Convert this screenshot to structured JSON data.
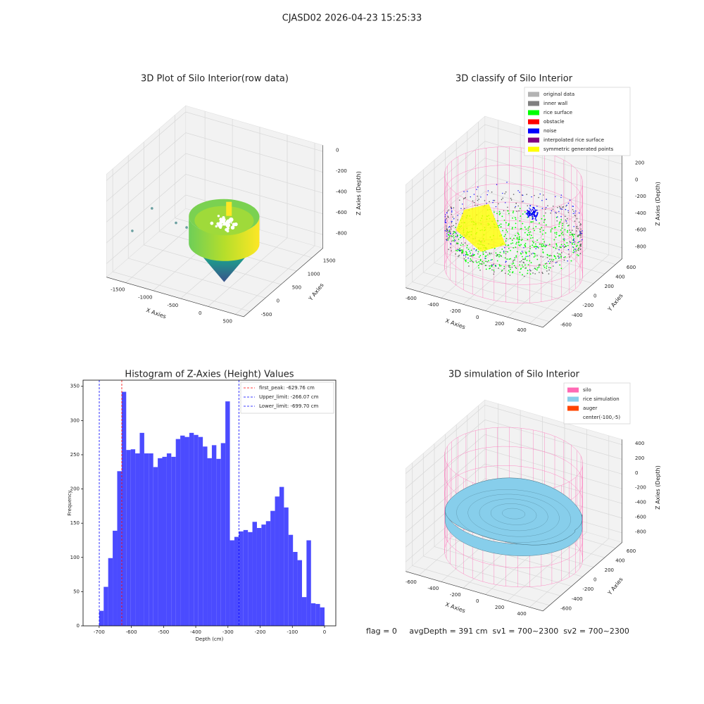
{
  "title": "CJASD02 2026-04-23 15:25:33",
  "chart_data": [
    {
      "type": "scatter3d",
      "title": "3D Plot of Silo Interior(row data)",
      "xlabel": "X Axies",
      "ylabel": "Y Axies",
      "zlabel": "Z Axies (Depth)",
      "xlim": [
        -1850,
        650
      ],
      "ylim": [
        -700,
        1850
      ],
      "zlim": [
        -930,
        60
      ],
      "xticks": [
        -1500,
        -1000,
        -500,
        0,
        500
      ],
      "yticks": [
        -500,
        0,
        500,
        1000,
        1500
      ],
      "zticks": [
        -800,
        -600,
        -400,
        -200,
        0
      ],
      "grid": true
    },
    {
      "type": "classify3d",
      "title": "3D classify of Silo Interior",
      "xlabel": "X Axies",
      "ylabel": "Y Axies",
      "zlabel": "Z Axies (Depth)",
      "xlim": [
        -720,
        520
      ],
      "ylim": [
        -720,
        720
      ],
      "zlim": [
        -930,
        300
      ],
      "xticks": [
        -600,
        -400,
        -200,
        0,
        200,
        400
      ],
      "yticks": [
        -600,
        -400,
        -200,
        0,
        200,
        400,
        600
      ],
      "zticks": [
        -800,
        -600,
        -400,
        -200,
        0,
        200
      ],
      "grid": true,
      "legend": [
        {
          "name": "original data",
          "color": "#b3b3b3"
        },
        {
          "name": "inner wall",
          "color": "#808080"
        },
        {
          "name": "rice surface",
          "color": "#00ff00"
        },
        {
          "name": "obstacle",
          "color": "#ff0000"
        },
        {
          "name": "noise",
          "color": "#0000ff"
        },
        {
          "name": "interpolated rice surface",
          "color": "#800080"
        },
        {
          "name": "symmetric generated points",
          "color": "#ffff00"
        }
      ]
    },
    {
      "type": "histogram",
      "title": "Histogram of Z-Axies (Height) Values",
      "xlabel": "Depth (cm)",
      "ylabel": "Frequency",
      "color": "#4b4bff",
      "bins": [
        -700,
        -686,
        -672,
        -658,
        -644,
        -630,
        -616,
        -602,
        -588,
        -574,
        -560,
        -546,
        -532,
        -518,
        -504,
        -490,
        -476,
        -462,
        -448,
        -434,
        -420,
        -406,
        -392,
        -378,
        -364,
        -350,
        -336,
        -322,
        -308,
        -294,
        -280,
        -266,
        -252,
        -238,
        -224,
        -210,
        -196,
        -182,
        -168,
        -154,
        -140,
        -126,
        -112,
        -98,
        -84,
        -70,
        -56,
        -42,
        -28,
        -14,
        0
      ],
      "values": [
        22,
        57,
        99,
        139,
        226,
        342,
        257,
        258,
        252,
        282,
        252,
        252,
        232,
        245,
        247,
        252,
        247,
        273,
        278,
        276,
        282,
        279,
        276,
        262,
        245,
        264,
        244,
        267,
        328,
        125,
        130,
        138,
        140,
        137,
        152,
        143,
        148,
        153,
        168,
        189,
        203,
        173,
        133,
        108,
        96,
        42,
        125,
        33,
        32,
        27
      ],
      "xlim": [
        -750,
        35
      ],
      "ylim": [
        0,
        359
      ],
      "xticks": [
        -700,
        -600,
        -500,
        -400,
        -300,
        -200,
        -100,
        0
      ],
      "yticks": [
        0,
        50,
        100,
        150,
        200,
        250,
        300,
        350
      ],
      "vlines": [
        {
          "value": -629.76,
          "label": "first_peak: -629.76 cm",
          "color": "#ff0000"
        },
        {
          "value": -266.07,
          "label": "Upper_limit: -266.07 cm",
          "color": "#0000ff"
        },
        {
          "value": -699.7,
          "label": "Lower_limit: -699.70 cm",
          "color": "#0000ff"
        }
      ]
    },
    {
      "type": "surface3d",
      "title": "3D simulation of Silo Interior",
      "xlabel": "X Axies",
      "ylabel": "Y Axies",
      "zlabel": "Z Axies (Depth)",
      "xlim": [
        -720,
        520
      ],
      "ylim": [
        -720,
        720
      ],
      "zlim": [
        -930,
        470
      ],
      "xticks": [
        -600,
        -400,
        -200,
        0,
        200,
        400
      ],
      "yticks": [
        -600,
        -400,
        -200,
        0,
        200,
        400,
        600
      ],
      "zticks": [
        -800,
        -600,
        -400,
        -200,
        0,
        200,
        400
      ],
      "grid": true,
      "legend": [
        {
          "name": "silo",
          "color": "#ff69b4"
        },
        {
          "name": "rice simulation",
          "color": "#87ceeb"
        },
        {
          "name": "auger",
          "color": "#ff4500"
        },
        {
          "name": "center(-100,-5)"
        }
      ]
    }
  ],
  "footer": "flag = 0     avgDepth = 391 cm  sv1 = 700~2300  sv2 = 700~2300"
}
